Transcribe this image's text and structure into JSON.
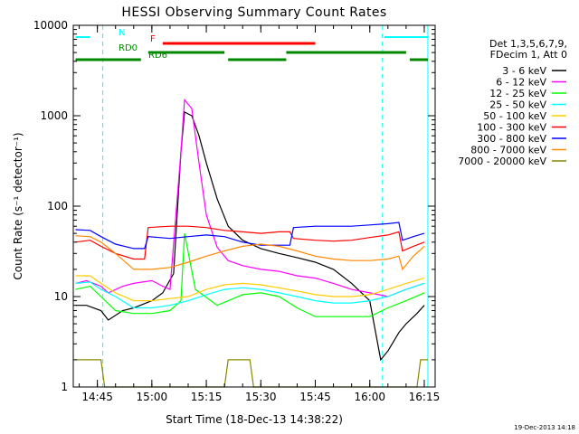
{
  "chart_data": {
    "type": "line",
    "title": "HESSI Observing Summary Count Rates",
    "xlabel": "Start Time (18-Dec-13 14:38:22)",
    "ylabel": "Count Rate (s⁻¹ detector⁻¹)",
    "y_scale": "log",
    "ylim": [
      1,
      10000
    ],
    "xlim": [
      "14:38:22",
      "16:18:00"
    ],
    "y_ticks": [
      {
        "value": 1,
        "label": "1"
      },
      {
        "value": 10,
        "label": "10"
      },
      {
        "value": 100,
        "label": "100"
      },
      {
        "value": 1000,
        "label": "1000"
      },
      {
        "value": 10000,
        "label": "10000"
      }
    ],
    "x_ticks": [
      {
        "time": "14:45",
        "label": "14:45"
      },
      {
        "time": "15:00",
        "label": "15:00"
      },
      {
        "time": "15:15",
        "label": "15:15"
      },
      {
        "time": "15:30",
        "label": "15:30"
      },
      {
        "time": "15:45",
        "label": "15:45"
      },
      {
        "time": "16:00",
        "label": "16:00"
      },
      {
        "time": "16:15",
        "label": "16:15"
      }
    ],
    "legend": {
      "placement": "right",
      "header": [
        "Det 1,3,5,6,7,9,",
        "FDecim 1, Att 0"
      ]
    },
    "series": [
      {
        "name": "3 - 6 keV",
        "color": "#000000",
        "x": [
          "14:39",
          "14:42",
          "14:46",
          "14:48",
          "14:52",
          "14:55",
          "15:00",
          "15:03",
          "15:06",
          "15:08",
          "15:09",
          "15:11",
          "15:13",
          "15:15",
          "15:18",
          "15:21",
          "15:25",
          "15:30",
          "15:35",
          "15:40",
          "15:45",
          "15:50",
          "15:55",
          "16:00",
          "16:03",
          "16:05",
          "16:08",
          "16:10",
          "16:13",
          "16:15"
        ],
        "y": [
          8,
          8,
          7,
          5.5,
          7,
          7.5,
          9,
          11,
          18,
          400,
          1100,
          1000,
          600,
          300,
          120,
          60,
          42,
          34,
          30,
          27,
          24,
          20,
          14,
          9,
          2,
          2.5,
          4,
          5,
          6.5,
          8
        ]
      },
      {
        "name": "6 - 12 keV",
        "color": "#ff00ff",
        "x": [
          "14:39",
          "14:42",
          "14:46",
          "14:48",
          "14:52",
          "14:55",
          "15:00",
          "15:03",
          "15:05",
          "15:08",
          "15:09",
          "15:11",
          "15:13",
          "15:15",
          "15:18",
          "15:21",
          "15:25",
          "15:30",
          "15:35",
          "15:40",
          "15:45",
          "15:50",
          "15:55",
          "16:00",
          "16:05",
          "16:10",
          "16:15"
        ],
        "y": [
          14,
          15,
          13,
          11,
          13,
          14,
          15,
          13,
          12,
          400,
          1500,
          1200,
          300,
          80,
          35,
          25,
          22,
          20,
          19,
          17,
          16,
          14,
          12,
          11,
          10,
          12,
          14
        ]
      },
      {
        "name": "12 - 25 keV",
        "color": "#00ff00",
        "x": [
          "14:39",
          "14:43",
          "14:46",
          "14:50",
          "14:55",
          "15:00",
          "15:05",
          "15:08",
          "15:09",
          "15:12",
          "15:18",
          "15:25",
          "15:30",
          "15:35",
          "15:40",
          "15:45",
          "15:50",
          "15:55",
          "16:00",
          "16:05",
          "16:10",
          "16:15"
        ],
        "y": [
          12,
          13,
          10,
          7,
          6.5,
          6.5,
          7,
          9,
          50,
          12,
          8,
          10.5,
          11,
          10,
          7.5,
          6,
          6,
          6,
          6,
          7.5,
          9,
          11
        ]
      },
      {
        "name": "25 - 50 keV",
        "color": "#00ffff",
        "x": [
          "14:39",
          "14:43",
          "14:46",
          "14:50",
          "14:55",
          "15:00",
          "15:05",
          "15:10",
          "15:15",
          "15:20",
          "15:25",
          "15:30",
          "15:35",
          "15:40",
          "15:45",
          "15:50",
          "15:55",
          "16:00",
          "16:05",
          "16:10",
          "16:15"
        ],
        "y": [
          14,
          14.5,
          12,
          10,
          7.5,
          7.5,
          8,
          9,
          10.5,
          12,
          12.5,
          12,
          11,
          10,
          9,
          8.5,
          8.5,
          9,
          10,
          12,
          14
        ]
      },
      {
        "name": "50 - 100 keV",
        "color": "#ffcc00",
        "x": [
          "14:39",
          "14:43",
          "14:46",
          "14:50",
          "14:55",
          "15:00",
          "15:05",
          "15:10",
          "15:15",
          "15:20",
          "15:25",
          "15:30",
          "15:35",
          "15:40",
          "15:45",
          "15:50",
          "15:55",
          "16:00",
          "16:05",
          "16:10",
          "16:15"
        ],
        "y": [
          17,
          17,
          14,
          11,
          9,
          9,
          9.5,
          10,
          12,
          13.5,
          14,
          13.5,
          12.5,
          11.5,
          10.5,
          10,
          10,
          10.5,
          12,
          14,
          16
        ]
      },
      {
        "name": "100 - 300 keV",
        "color": "#ff0000",
        "x": [
          "14:39",
          "14:43",
          "14:46",
          "14:50",
          "14:55",
          "14:58",
          "14:59",
          "15:05",
          "15:10",
          "15:15",
          "15:20",
          "15:25",
          "15:30",
          "15:35",
          "15:38",
          "15:39",
          "15:45",
          "15:50",
          "15:55",
          "16:00",
          "16:05",
          "16:08",
          "16:09",
          "16:12",
          "16:15"
        ],
        "y": [
          40,
          42,
          36,
          30,
          26,
          26,
          58,
          60,
          60,
          58,
          54,
          52,
          50,
          52,
          52,
          44,
          42,
          41,
          42,
          45,
          48,
          52,
          32,
          36,
          40
        ]
      },
      {
        "name": "300 - 800 keV",
        "color": "#0000ff",
        "x": [
          "14:39",
          "14:43",
          "14:46",
          "14:50",
          "14:55",
          "14:58",
          "14:59",
          "15:05",
          "15:10",
          "15:15",
          "15:20",
          "15:25",
          "15:30",
          "15:35",
          "15:38",
          "15:39",
          "15:45",
          "15:50",
          "15:55",
          "16:00",
          "16:05",
          "16:08",
          "16:09",
          "16:12",
          "16:15"
        ],
        "y": [
          55,
          54,
          46,
          38,
          34,
          34,
          46,
          44,
          46,
          48,
          46,
          40,
          37,
          37,
          37,
          58,
          60,
          60,
          60,
          62,
          64,
          66,
          42,
          46,
          50
        ]
      },
      {
        "name": "800 - 7000 keV",
        "color": "#ff8800",
        "x": [
          "14:39",
          "14:43",
          "14:46",
          "14:50",
          "14:55",
          "15:00",
          "15:05",
          "15:10",
          "15:15",
          "15:20",
          "15:25",
          "15:30",
          "15:35",
          "15:40",
          "15:45",
          "15:50",
          "15:55",
          "16:00",
          "16:05",
          "16:08",
          "16:09",
          "16:12",
          "16:15"
        ],
        "y": [
          47,
          46,
          40,
          30,
          20,
          20,
          21,
          24,
          28,
          32,
          36,
          38,
          36,
          32,
          28,
          26,
          25,
          25,
          26,
          28,
          20,
          28,
          36
        ]
      },
      {
        "name": "7000 - 20000 keV",
        "color": "#888800",
        "x": [
          "14:39",
          "14:46",
          "14:47",
          "15:20",
          "15:21",
          "15:27",
          "15:28",
          "16:13",
          "16:14",
          "16:16"
        ],
        "y": [
          2,
          2,
          1,
          1,
          2,
          2,
          1,
          1,
          2,
          2
        ]
      }
    ],
    "annotations": [
      {
        "label": "N",
        "color": "#00ffff",
        "segments": [
          [
            "14:39",
            "14:43"
          ],
          [
            "16:04",
            "16:16"
          ]
        ]
      },
      {
        "label": "F",
        "color": "#ff0000",
        "segments": [
          [
            "15:03",
            "15:45"
          ]
        ]
      },
      {
        "label": "RD0",
        "color": "#008800",
        "segments": [
          [
            "14:59",
            "15:20"
          ],
          [
            "15:37",
            "16:10"
          ]
        ]
      },
      {
        "label": "RD6",
        "color": "#008800",
        "segments": [
          [
            "14:39",
            "14:57"
          ],
          [
            "15:21",
            "15:37"
          ],
          [
            "16:11",
            "16:16"
          ]
        ]
      }
    ],
    "night_times": [
      "14:46:30",
      "16:03:30",
      "16:16:00"
    ],
    "grid": false
  },
  "footer": {
    "timestamp": "19-Dec-2013 14:18"
  }
}
